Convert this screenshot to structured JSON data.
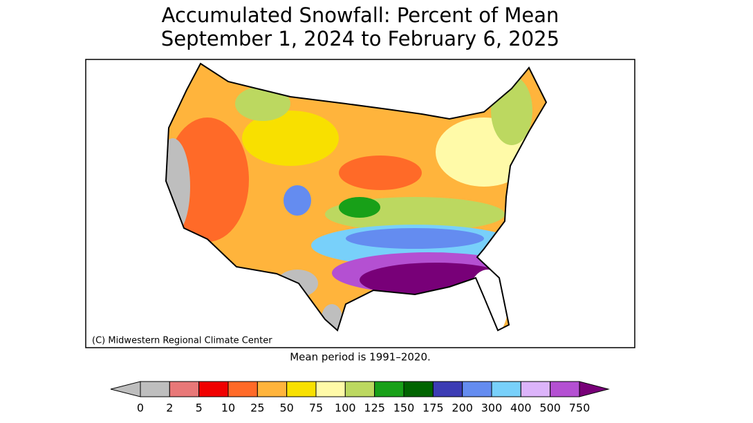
{
  "header": {
    "title_line1": "Accumulated Snowfall: Percent of Mean",
    "title_line2": "September 1, 2024 to February 6, 2025"
  },
  "map": {
    "credit": "(C) Midwestern Regional Climate Center",
    "note": "Mean period is 1991–2020."
  },
  "legend": {
    "labels": [
      0,
      2,
      5,
      10,
      25,
      50,
      75,
      100,
      125,
      150,
      175,
      200,
      300,
      400,
      500,
      750
    ],
    "colors": [
      "#bebebe",
      "#bebebe",
      "#e87878",
      "#f00000",
      "#ff6a28",
      "#ffb43c",
      "#f8e000",
      "#fffaa8",
      "#bcd860",
      "#18a018",
      "#006400",
      "#3c3cb4",
      "#648cf0",
      "#78d0fa",
      "#dcb4fa",
      "#b450d2",
      "#780078"
    ]
  }
}
